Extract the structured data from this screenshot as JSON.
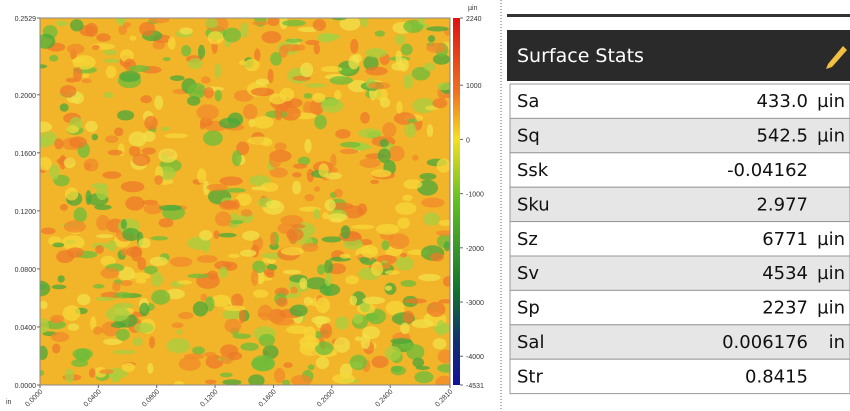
{
  "surface_map": {
    "y_axis": {
      "unit": "in",
      "ticks": [
        "0.2529",
        "0.2000",
        "0.1600",
        "0.1200",
        "0.0800",
        "0.0400",
        "0.0000"
      ]
    },
    "x_axis": {
      "ticks": [
        "0.0000",
        "0.0400",
        "0.0800",
        "0.1200",
        "0.1600",
        "0.2000",
        "0.2400",
        "0.2810"
      ]
    },
    "colorbar": {
      "unit": "µin",
      "ticks": [
        "2240",
        "1000",
        "0",
        "-1000",
        "-2000",
        "-3000",
        "-4000",
        "-4531"
      ]
    }
  },
  "stats": {
    "title": "Surface Stats",
    "rows": [
      [
        "Sa",
        "433.0",
        "µin"
      ],
      [
        "Sq",
        "542.5",
        "µin"
      ],
      [
        "Ssk",
        "-0.04162"
      ],
      [
        "Sku",
        "2.977"
      ],
      [
        "Sz",
        "6771",
        "µin"
      ],
      [
        "Sv",
        "4534",
        "µin"
      ],
      [
        "Sp",
        "2237",
        "µin"
      ],
      [
        "Sal",
        "0.006176",
        "in"
      ],
      [
        "Str",
        "0.8415"
      ]
    ]
  }
}
